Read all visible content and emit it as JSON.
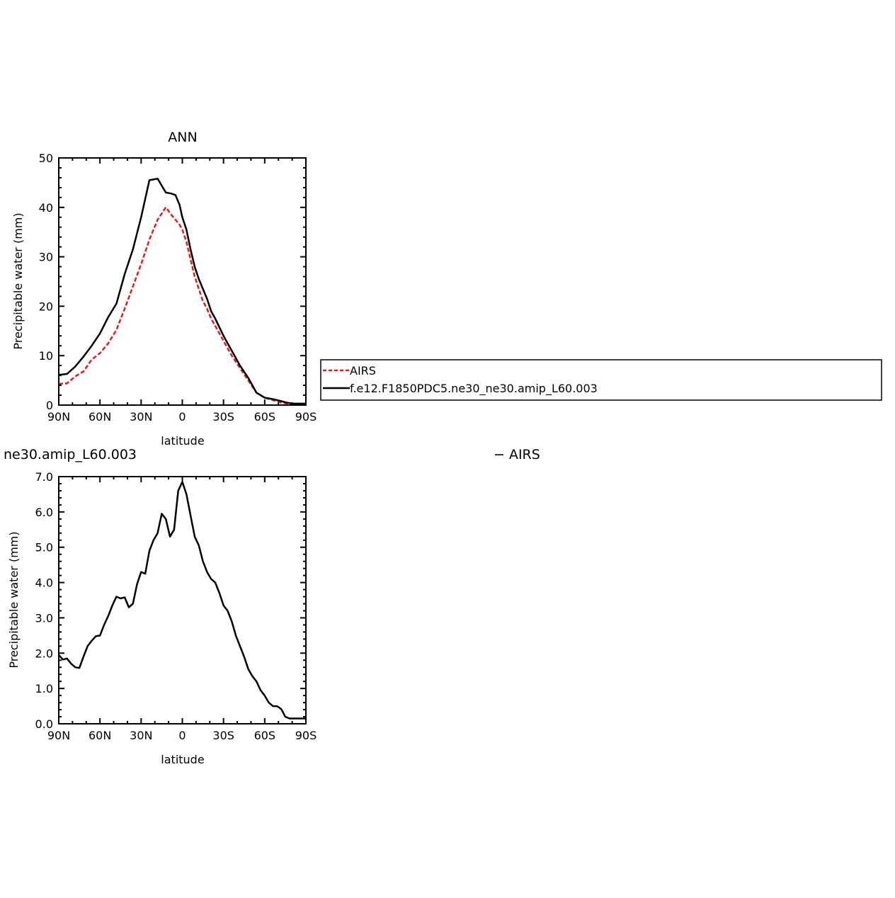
{
  "chart_data": [
    {
      "type": "line",
      "title": "ANN",
      "xlabel": "latitude",
      "ylabel": "Precipitable water (mm)",
      "xlim": [
        90,
        -90
      ],
      "ylim": [
        0,
        50
      ],
      "xticks": [
        90,
        60,
        30,
        0,
        -30,
        -60,
        -90
      ],
      "xtick_labels": [
        "90N",
        "60N",
        "30N",
        "0",
        "30S",
        "60S",
        "90S"
      ],
      "yticks": [
        0,
        10,
        20,
        30,
        40,
        50
      ],
      "ytick_labels": [
        "0",
        "10",
        "20",
        "30",
        "40",
        "50"
      ],
      "legend_placement": "right",
      "series": [
        {
          "name": "AIRS",
          "color": "#e8191b",
          "dash": "dashed",
          "x": [
            90,
            84,
            78,
            72,
            66,
            60,
            54,
            48,
            42,
            36,
            30,
            24,
            18,
            12,
            8,
            5,
            2,
            0,
            -3,
            -6,
            -9,
            -12,
            -15,
            -18,
            -21,
            -24,
            -30,
            -36,
            -42,
            -48,
            -54,
            -60,
            -66,
            -72,
            -76,
            -80,
            -84,
            -88,
            -90
          ],
          "y": [
            4.3,
            4.4,
            5.8,
            6.8,
            9.2,
            10.5,
            12.5,
            15.2,
            19.5,
            24.0,
            28.5,
            33.5,
            37.5,
            40.0,
            38.5,
            37.5,
            36.5,
            35.5,
            33.0,
            29.5,
            26.0,
            23.5,
            21.0,
            19.5,
            17.5,
            16.0,
            13.0,
            10.0,
            7.5,
            5.0,
            2.5,
            1.5,
            1.0,
            0.5,
            0.3,
            0.2,
            0.2,
            0.2,
            0.2
          ]
        },
        {
          "name": "f.e12.F1850PDC5.ne30_ne30.amip_L60.003",
          "color": "#000000",
          "dash": "solid",
          "x": [
            90,
            84,
            78,
            72,
            66,
            60,
            54,
            48,
            42,
            36,
            30,
            24,
            18,
            12,
            8,
            5,
            2,
            0,
            -3,
            -6,
            -9,
            -12,
            -15,
            -18,
            -21,
            -24,
            -30,
            -36,
            -42,
            -48,
            -54,
            -60,
            -66,
            -72,
            -76,
            -80,
            -84,
            -88,
            -90
          ],
          "y": [
            6.1,
            6.3,
            7.8,
            9.8,
            12.0,
            14.5,
            17.8,
            20.5,
            26.5,
            31.5,
            38.0,
            45.5,
            45.8,
            43.0,
            42.8,
            42.5,
            40.5,
            38.0,
            35.5,
            31.5,
            28.0,
            25.5,
            23.5,
            21.5,
            19.0,
            17.5,
            14.0,
            11.0,
            8.0,
            5.5,
            2.5,
            1.5,
            1.2,
            0.8,
            0.5,
            0.3,
            0.3,
            0.3,
            0.3
          ]
        }
      ]
    },
    {
      "type": "line",
      "title": "ne30.amip_L60.003",
      "title2": "− AIRS",
      "xlabel": "latitude",
      "ylabel": "Precipitable water (mm)",
      "xlim": [
        90,
        -90
      ],
      "ylim": [
        0,
        7
      ],
      "xticks": [
        90,
        60,
        30,
        0,
        -30,
        -60,
        -90
      ],
      "xtick_labels": [
        "90N",
        "60N",
        "30N",
        "0",
        "30S",
        "60S",
        "90S"
      ],
      "yticks": [
        0,
        1,
        2,
        3,
        4,
        5,
        6,
        7
      ],
      "ytick_labels": [
        "0.0",
        "1.0",
        "2.0",
        "3.0",
        "4.0",
        "5.0",
        "6.0",
        "7.0"
      ],
      "series": [
        {
          "color": "#000000",
          "dash": "solid",
          "x": [
            90,
            87,
            84,
            81,
            78,
            75,
            72,
            69,
            66,
            63,
            60,
            57,
            54,
            51,
            48,
            45,
            42,
            39,
            36,
            33,
            30,
            27,
            24,
            21,
            18,
            15,
            12,
            9,
            6,
            3,
            0,
            -3,
            -6,
            -9,
            -12,
            -15,
            -18,
            -21,
            -24,
            -27,
            -30,
            -33,
            -36,
            -39,
            -42,
            -45,
            -48,
            -51,
            -54,
            -57,
            -60,
            -63,
            -66,
            -69,
            -72,
            -75,
            -78,
            -81,
            -84,
            -87,
            -90
          ],
          "y": [
            1.95,
            1.82,
            1.85,
            1.7,
            1.6,
            1.58,
            1.9,
            2.2,
            2.35,
            2.48,
            2.5,
            2.8,
            3.05,
            3.35,
            3.6,
            3.55,
            3.58,
            3.3,
            3.4,
            3.95,
            4.3,
            4.25,
            4.9,
            5.2,
            5.4,
            5.95,
            5.8,
            5.3,
            5.5,
            6.6,
            6.85,
            6.5,
            5.9,
            5.3,
            5.05,
            4.6,
            4.3,
            4.1,
            4.0,
            3.7,
            3.35,
            3.2,
            2.9,
            2.5,
            2.2,
            1.9,
            1.55,
            1.35,
            1.2,
            0.95,
            0.8,
            0.6,
            0.5,
            0.5,
            0.42,
            0.2,
            0.15,
            0.15,
            0.15,
            0.15,
            0.15
          ]
        }
      ]
    }
  ]
}
